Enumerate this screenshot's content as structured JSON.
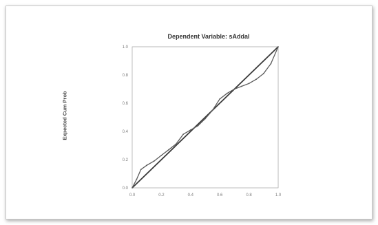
{
  "chart_data": {
    "type": "line",
    "title": "Dependent Variable: sAddal",
    "xlabel": "",
    "ylabel": "Expected Cum Prob",
    "xlim": [
      0.0,
      1.0
    ],
    "ylim": [
      0.0,
      1.0
    ],
    "x_ticks": [
      "0.0",
      "0.2",
      "0.4",
      "0.6",
      "0.8",
      "1.0"
    ],
    "y_ticks": [
      "0.0",
      "0.2",
      "0.4",
      "0.6",
      "0.8",
      "1.0"
    ],
    "grid": true,
    "legend": "none",
    "colors": {
      "line": "#3a3a3a",
      "observed": "#5a5a5a",
      "grid": "#d9d9d9",
      "axis": "#b0b0b0"
    },
    "series": [
      {
        "style": "reference",
        "x": [
          0.0,
          1.0
        ],
        "y": [
          0.0,
          1.0
        ]
      },
      {
        "style": "observed",
        "x": [
          0.0,
          0.03,
          0.06,
          0.1,
          0.15,
          0.2,
          0.25,
          0.3,
          0.35,
          0.4,
          0.45,
          0.5,
          0.55,
          0.6,
          0.65,
          0.7,
          0.75,
          0.8,
          0.85,
          0.9,
          0.95,
          1.0
        ],
        "y": [
          0.0,
          0.06,
          0.13,
          0.16,
          0.19,
          0.23,
          0.27,
          0.31,
          0.38,
          0.41,
          0.44,
          0.49,
          0.55,
          0.63,
          0.67,
          0.7,
          0.72,
          0.74,
          0.77,
          0.81,
          0.88,
          1.0
        ]
      }
    ]
  }
}
